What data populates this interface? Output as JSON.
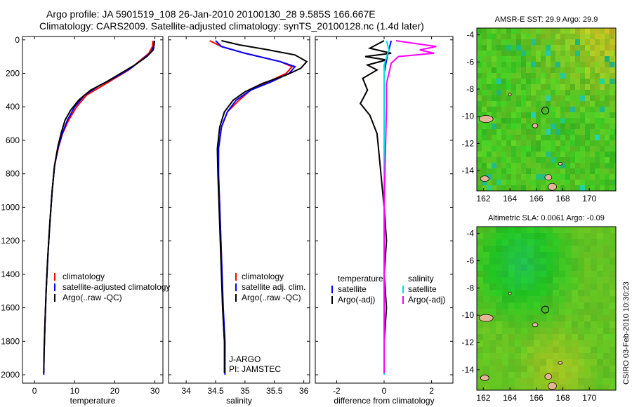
{
  "header": {
    "line1": "Argo profile: JA 5901519_108 26-Jan-2010 20100130_28 9.585S 166.667E",
    "line2": "Climatology: CARS2009. Satellite-adjusted climatology: synTS_20100128.nc (1.4d later)"
  },
  "credit": "CSIRO 03-Feb-2010 10:30:23",
  "colors": {
    "climatology": "#ff0000",
    "satellite": "#0000ff",
    "argo": "#000000",
    "sal_satellite": "#00e0e0",
    "sal_argo": "#ff00ff"
  },
  "chart_data": [
    {
      "type": "line",
      "id": "temperature",
      "xlabel": "temperature",
      "xlim": [
        -3,
        32
      ],
      "ylim": [
        2050,
        -20
      ],
      "xticks": [
        "0",
        "10",
        "20",
        "30"
      ],
      "xtick_values": [
        0,
        10,
        20,
        30
      ],
      "yticks": [
        "0",
        "200",
        "400",
        "600",
        "800",
        "1000",
        "1200",
        "1400",
        "1600",
        "1800",
        "2000"
      ],
      "ytick_values": [
        0,
        200,
        400,
        600,
        800,
        1000,
        1200,
        1400,
        1600,
        1800,
        2000
      ],
      "legend": [
        "climatology",
        "satellite-adjusted climatology",
        "Argo(..raw -QC)"
      ],
      "series": [
        {
          "name": "climatology",
          "color": "#ff0000",
          "points": [
            [
              29.5,
              5
            ],
            [
              29.4,
              40
            ],
            [
              28.5,
              80
            ],
            [
              26.5,
              120
            ],
            [
              23.5,
              180
            ],
            [
              20,
              230
            ],
            [
              16.5,
              280
            ],
            [
              13,
              330
            ],
            [
              10.5,
              400
            ],
            [
              8.5,
              480
            ],
            [
              7,
              560
            ],
            [
              6,
              640
            ],
            [
              5,
              750
            ],
            [
              4.4,
              900
            ],
            [
              3.8,
              1100
            ],
            [
              3.3,
              1300
            ],
            [
              2.9,
              1500
            ],
            [
              2.6,
              1700
            ],
            [
              2.4,
              1850
            ]
          ]
        },
        {
          "name": "satellite-adjusted climatology",
          "color": "#0000ff",
          "points": [
            [
              29.9,
              5
            ],
            [
              29.7,
              40
            ],
            [
              29,
              75
            ],
            [
              27,
              115
            ],
            [
              24,
              170
            ],
            [
              20,
              225
            ],
            [
              16,
              275
            ],
            [
              12.5,
              330
            ],
            [
              10,
              400
            ],
            [
              8.2,
              480
            ],
            [
              6.9,
              560
            ],
            [
              5.9,
              640
            ],
            [
              5,
              750
            ],
            [
              4.4,
              900
            ],
            [
              3.8,
              1100
            ],
            [
              3.3,
              1300
            ],
            [
              2.9,
              1500
            ],
            [
              2.6,
              1700
            ],
            [
              2.4,
              1850
            ],
            [
              2.3,
              2000
            ]
          ]
        },
        {
          "name": "Argo(..raw -QC)",
          "color": "#000000",
          "points": [
            [
              29.9,
              5
            ],
            [
              29.8,
              30
            ],
            [
              29.6,
              60
            ],
            [
              28,
              100
            ],
            [
              25,
              150
            ],
            [
              21.5,
              200
            ],
            [
              18,
              250
            ],
            [
              14,
              300
            ],
            [
              11,
              360
            ],
            [
              9,
              420
            ],
            [
              7.6,
              480
            ],
            [
              6.6,
              560
            ],
            [
              5.8,
              640
            ],
            [
              5,
              750
            ],
            [
              4.4,
              900
            ],
            [
              3.8,
              1100
            ],
            [
              3.3,
              1300
            ],
            [
              2.9,
              1500
            ],
            [
              2.6,
              1700
            ],
            [
              2.4,
              1850
            ],
            [
              2.3,
              1990
            ]
          ]
        }
      ]
    },
    {
      "type": "line",
      "id": "salinity",
      "xlabel": "salinity",
      "xlim": [
        33.7,
        36.1
      ],
      "ylim": [
        2050,
        -20
      ],
      "xticks": [
        "34",
        "34.5",
        "35",
        "35.5",
        "36"
      ],
      "xtick_values": [
        34,
        34.5,
        35,
        35.5,
        36
      ],
      "legend": [
        "climatology",
        "satellite adj. clim.",
        "Argo(..raw -QC)"
      ],
      "annotation": [
        "J-ARGO",
        "PI: JAMSTEC"
      ],
      "series": [
        {
          "name": "climatology",
          "color": "#ff0000",
          "points": [
            [
              34.4,
              5
            ],
            [
              34.6,
              40
            ],
            [
              35,
              80
            ],
            [
              35.6,
              130
            ],
            [
              35.8,
              160
            ],
            [
              35.7,
              200
            ],
            [
              35.4,
              250
            ],
            [
              35.1,
              300
            ],
            [
              34.9,
              360
            ],
            [
              34.7,
              430
            ],
            [
              34.6,
              520
            ],
            [
              34.55,
              650
            ],
            [
              34.55,
              800
            ],
            [
              34.57,
              1000
            ],
            [
              34.6,
              1300
            ],
            [
              34.62,
              1600
            ],
            [
              34.65,
              1800
            ]
          ]
        },
        {
          "name": "satellite adj. clim.",
          "color": "#0000ff",
          "points": [
            [
              34.5,
              5
            ],
            [
              34.6,
              40
            ],
            [
              35,
              80
            ],
            [
              35.6,
              130
            ],
            [
              35.85,
              160
            ],
            [
              35.75,
              200
            ],
            [
              35.45,
              250
            ],
            [
              35.1,
              300
            ],
            [
              34.85,
              360
            ],
            [
              34.7,
              430
            ],
            [
              34.6,
              520
            ],
            [
              34.55,
              650
            ],
            [
              34.55,
              800
            ],
            [
              34.57,
              1000
            ],
            [
              34.6,
              1300
            ],
            [
              34.63,
              1600
            ],
            [
              34.66,
              1800
            ],
            [
              34.66,
              2000
            ]
          ]
        },
        {
          "name": "Argo(..raw -QC)",
          "color": "#000000",
          "points": [
            [
              34.6,
              5
            ],
            [
              34.9,
              30
            ],
            [
              35.4,
              60
            ],
            [
              35.85,
              90
            ],
            [
              36.05,
              130
            ],
            [
              35.95,
              170
            ],
            [
              35.7,
              210
            ],
            [
              35.3,
              260
            ],
            [
              35.0,
              310
            ],
            [
              34.8,
              360
            ],
            [
              34.65,
              430
            ],
            [
              34.57,
              520
            ],
            [
              34.53,
              650
            ],
            [
              34.54,
              800
            ],
            [
              34.56,
              1000
            ],
            [
              34.59,
              1300
            ],
            [
              34.62,
              1600
            ],
            [
              34.65,
              1800
            ],
            [
              34.65,
              1990
            ]
          ]
        }
      ]
    },
    {
      "type": "line",
      "id": "difference",
      "xlabel": "difference from climatology",
      "xlim": [
        -2.9,
        2.9
      ],
      "ylim": [
        2050,
        -20
      ],
      "xticks": [
        "-2",
        "0",
        "2"
      ],
      "xtick_values": [
        -2,
        0,
        2
      ],
      "legend_left": [
        "temperature",
        "satellite",
        "Argo(-adj)"
      ],
      "legend_right": [
        "salinity",
        "satellite",
        "Argo(-adj)"
      ],
      "series": [
        {
          "name": "temperature satellite",
          "color": "#0000ff",
          "points": [
            [
              0.3,
              5
            ],
            [
              0.2,
              60
            ],
            [
              0.1,
              120
            ],
            [
              0,
              200
            ],
            [
              0,
              400
            ],
            [
              0,
              800
            ],
            [
              0,
              1200
            ],
            [
              0,
              1600
            ],
            [
              0,
              2000
            ]
          ]
        },
        {
          "name": "temperature Argo(-adj)",
          "color": "#000000",
          "points": [
            [
              0,
              5
            ],
            [
              -0.2,
              20
            ],
            [
              -0.6,
              50
            ],
            [
              0.3,
              80
            ],
            [
              -0.8,
              100
            ],
            [
              0.1,
              120
            ],
            [
              -0.7,
              150
            ],
            [
              -0.3,
              180
            ],
            [
              -0.9,
              230
            ],
            [
              -0.7,
              300
            ],
            [
              -1.0,
              380
            ],
            [
              -0.6,
              450
            ],
            [
              -0.3,
              560
            ],
            [
              -0.2,
              700
            ],
            [
              -0.1,
              850
            ],
            [
              0,
              1000
            ],
            [
              0.1,
              1200
            ],
            [
              0,
              1400
            ],
            [
              0.1,
              1600
            ],
            [
              0,
              1800
            ],
            [
              0,
              1990
            ]
          ]
        },
        {
          "name": "salinity satellite",
          "color": "#00e0e0",
          "points": [
            [
              0.1,
              5
            ],
            [
              0.2,
              60
            ],
            [
              0,
              150
            ],
            [
              0,
              400
            ],
            [
              0,
              800
            ],
            [
              0,
              1200
            ],
            [
              0,
              1600
            ],
            [
              0,
              2000
            ]
          ]
        },
        {
          "name": "salinity Argo(-adj)",
          "color": "#ff00ff",
          "points": [
            [
              0.5,
              5
            ],
            [
              1.2,
              20
            ],
            [
              2.2,
              40
            ],
            [
              1.5,
              60
            ],
            [
              2.1,
              80
            ],
            [
              0.6,
              100
            ],
            [
              0.3,
              140
            ],
            [
              0.2,
              200
            ],
            [
              0.1,
              260
            ],
            [
              0.1,
              400
            ],
            [
              0.05,
              700
            ],
            [
              0,
              1000
            ],
            [
              0,
              1400
            ],
            [
              0,
              1800
            ],
            [
              0,
              1990
            ]
          ]
        }
      ]
    },
    {
      "type": "heatmap",
      "id": "sst-map",
      "title": "AMSR-E SST: 29.9  Argo: 29.9",
      "xlim": [
        161.5,
        172
      ],
      "ylim": [
        -15.5,
        -3.5
      ],
      "xticks": [
        "162",
        "164",
        "166",
        "168",
        "170"
      ],
      "xtick_values": [
        162,
        164,
        166,
        168,
        170
      ],
      "yticks": [
        "-4",
        "-6",
        "-8",
        "-10",
        "-12",
        "-14"
      ],
      "ytick_values": [
        -4,
        -6,
        -8,
        -10,
        -12,
        -14
      ],
      "marker": [
        166.67,
        -9.585
      ]
    },
    {
      "type": "heatmap",
      "id": "sla-map",
      "title": "Altimetric SLA: 0.0061  Argo: -0.09",
      "xlim": [
        161.5,
        172
      ],
      "ylim": [
        -15.5,
        -3.5
      ],
      "xticks": [
        "162",
        "164",
        "166",
        "168",
        "170"
      ],
      "xtick_values": [
        162,
        164,
        166,
        168,
        170
      ],
      "yticks": [
        "-4",
        "-6",
        "-8",
        "-10",
        "-12",
        "-14"
      ],
      "ytick_values": [
        -4,
        -6,
        -8,
        -10,
        -12,
        -14
      ],
      "marker": [
        166.67,
        -9.585
      ]
    }
  ]
}
